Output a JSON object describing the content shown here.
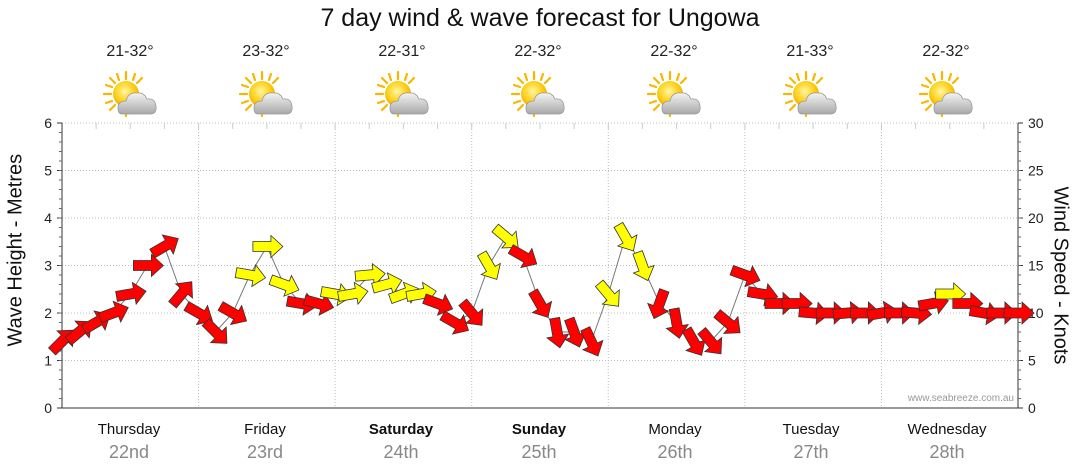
{
  "chart_data": {
    "type": "line",
    "title": "7 day wind & wave forecast for Ungowa",
    "ylabel_left": "Wave Height - Metres",
    "ylabel_right": "Wind Speed - Knots",
    "ylim_left": [
      0,
      6
    ],
    "ylim_right": [
      0,
      30
    ],
    "yticks_left": [
      "0",
      "1",
      "2",
      "3",
      "4",
      "5",
      "6"
    ],
    "yticks_right": [
      "0",
      "5",
      "10",
      "15",
      "20",
      "25",
      "30"
    ],
    "watermark": "www.seabreeze.com.au",
    "days": [
      {
        "name": "Thursday",
        "date": "22nd",
        "temp": "21-32°",
        "bold": false
      },
      {
        "name": "Friday",
        "date": "23rd",
        "temp": "23-32°",
        "bold": false
      },
      {
        "name": "Saturday",
        "date": "24th",
        "temp": "22-31°",
        "bold": true
      },
      {
        "name": "Sunday",
        "date": "25th",
        "temp": "22-32°",
        "bold": true
      },
      {
        "name": "Monday",
        "date": "26th",
        "temp": "22-32°",
        "bold": false
      },
      {
        "name": "Tuesday",
        "date": "27th",
        "temp": "21-33°",
        "bold": false
      },
      {
        "name": "Wednesday",
        "date": "28th",
        "temp": "22-32°",
        "bold": false
      }
    ],
    "wind_series": {
      "name": "Wind speed (knots)",
      "hours": [
        0,
        3,
        6,
        9,
        12,
        15,
        18,
        21,
        24,
        27,
        30,
        33,
        36,
        39,
        42,
        45,
        48,
        51,
        54,
        57,
        60,
        63,
        66,
        69,
        72,
        75,
        78,
        81,
        84,
        87,
        90,
        93,
        96,
        99,
        102,
        105,
        108,
        111,
        114,
        117,
        120,
        123,
        126,
        129,
        132,
        135,
        138,
        141,
        144,
        147,
        150,
        153,
        156,
        159,
        162,
        165,
        168
      ],
      "knots": [
        7,
        8,
        9,
        10,
        12,
        15,
        17,
        12,
        10,
        8,
        10,
        14,
        17,
        13,
        11,
        11,
        12,
        12,
        14,
        13,
        12,
        12,
        11,
        9,
        10,
        15,
        18,
        16,
        11,
        8,
        8,
        7,
        12,
        18,
        15,
        11,
        9,
        7,
        7,
        9,
        14,
        12,
        11,
        11,
        10,
        10,
        10,
        10,
        10,
        10,
        10,
        11,
        12,
        11,
        10,
        10,
        10
      ],
      "direction_deg": [
        225,
        230,
        240,
        250,
        260,
        270,
        240,
        220,
        300,
        315,
        300,
        280,
        270,
        290,
        280,
        285,
        280,
        260,
        265,
        255,
        250,
        260,
        290,
        300,
        320,
        330,
        310,
        300,
        330,
        350,
        340,
        335,
        320,
        330,
        340,
        20,
        350,
        330,
        320,
        310,
        290,
        280,
        270,
        270,
        275,
        270,
        265,
        270,
        260,
        270,
        275,
        260,
        270,
        270,
        280,
        270,
        270
      ]
    }
  }
}
